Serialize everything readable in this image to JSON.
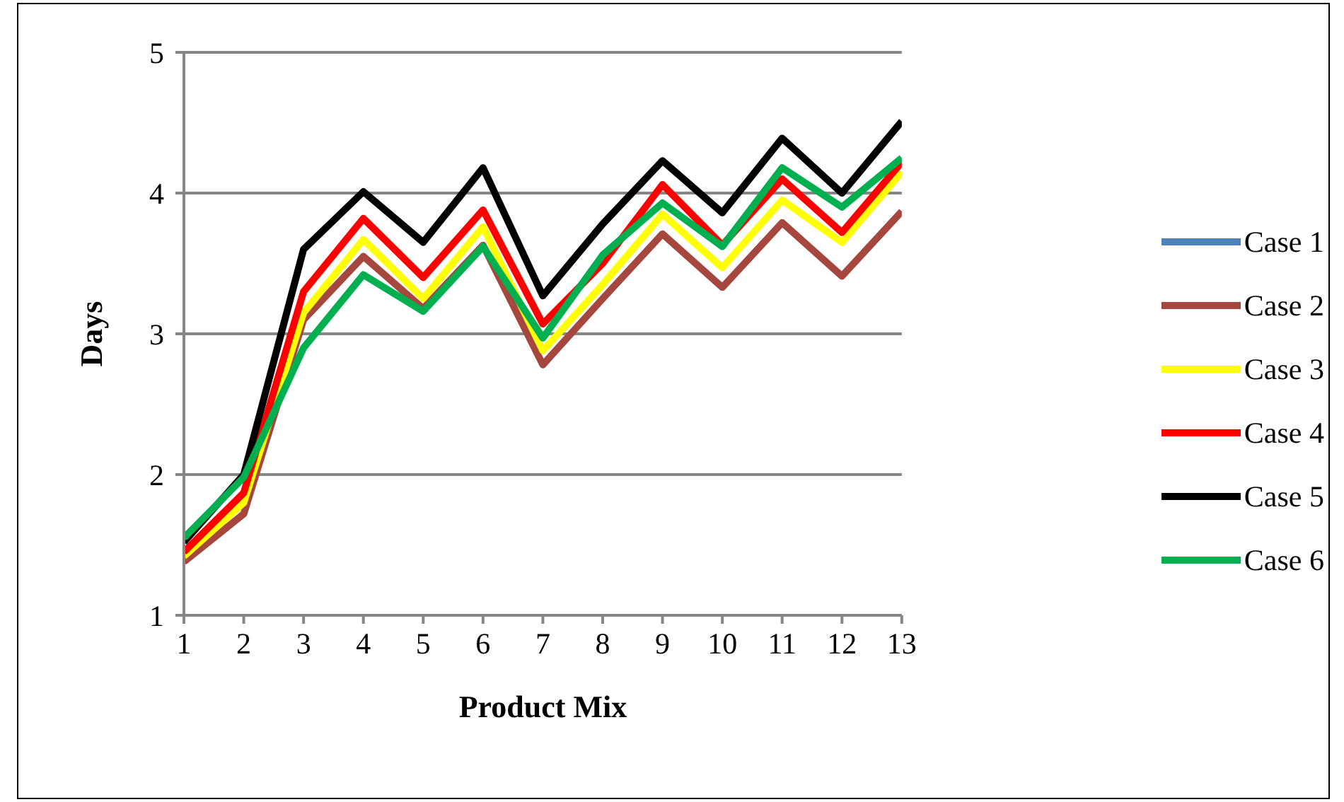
{
  "chart_data": {
    "type": "line",
    "xlabel": "Product Mix",
    "ylabel": "Days",
    "x": [
      1,
      2,
      3,
      4,
      5,
      6,
      7,
      8,
      9,
      10,
      11,
      12,
      13
    ],
    "xlim": [
      1,
      13
    ],
    "xticks": [
      1,
      2,
      3,
      4,
      5,
      6,
      7,
      8,
      9,
      10,
      11,
      12,
      13
    ],
    "ylim": [
      1,
      5
    ],
    "yticks": [
      1,
      2,
      3,
      4,
      5
    ],
    "grid": "y",
    "legend": "right",
    "marker": "none",
    "line_style": "solid",
    "series": [
      {
        "name": "Case 1",
        "color": "#4f81bd",
        "values": [
          null,
          null,
          null,
          null,
          null,
          null,
          null,
          null,
          null,
          null,
          null,
          null,
          null
        ]
      },
      {
        "name": "Case 2",
        "color": "#a5463f",
        "values": [
          1.38,
          1.72,
          3.1,
          3.55,
          3.18,
          3.63,
          2.78,
          3.25,
          3.71,
          3.33,
          3.79,
          3.41,
          3.87
        ]
      },
      {
        "name": "Case 3",
        "color": "#ffff00",
        "values": [
          1.42,
          1.8,
          3.15,
          3.67,
          3.25,
          3.76,
          2.88,
          3.35,
          3.85,
          3.47,
          3.95,
          3.65,
          4.15
        ]
      },
      {
        "name": "Case 4",
        "color": "#ff0000",
        "values": [
          1.45,
          1.87,
          3.3,
          3.82,
          3.4,
          3.88,
          3.07,
          3.5,
          4.06,
          3.63,
          4.1,
          3.72,
          4.22
        ]
      },
      {
        "name": "Case 5",
        "color": "#000000",
        "values": [
          1.52,
          2.0,
          3.6,
          4.01,
          3.65,
          4.18,
          3.27,
          3.78,
          4.23,
          3.86,
          4.39,
          4.0,
          4.51
        ]
      },
      {
        "name": "Case 6",
        "color": "#00b050",
        "values": [
          1.55,
          1.98,
          2.9,
          3.42,
          3.16,
          3.62,
          2.97,
          3.56,
          3.93,
          3.62,
          4.18,
          3.9,
          4.25
        ]
      }
    ]
  }
}
